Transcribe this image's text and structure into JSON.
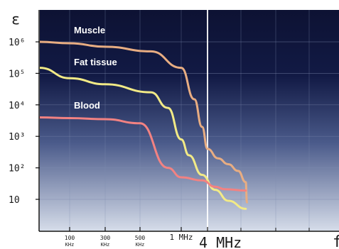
{
  "chart_data": {
    "type": "line",
    "ylabel": "ε",
    "xlabel": "f",
    "y_scale": "log",
    "x_scale": "log",
    "ylim": [
      3,
      2000000
    ],
    "y_ticks": [
      {
        "value": 10,
        "label": "10"
      },
      {
        "value": 100,
        "label": "10²"
      },
      {
        "value": 1000,
        "label": "10³"
      },
      {
        "value": 10000,
        "label": "10⁴"
      },
      {
        "value": 100000,
        "label": "10⁵"
      },
      {
        "value": 1000000,
        "label": "10⁶"
      }
    ],
    "x_ticks": [
      {
        "value": 100000,
        "label_top": "100",
        "label_bottom": "KHz"
      },
      {
        "value": 300000,
        "label_top": "300",
        "label_bottom": "KHz"
      },
      {
        "value": 500000,
        "label_top": "500",
        "label_bottom": "KHz"
      },
      {
        "value": 1000000,
        "label_top": "1 MHz",
        "label_bottom": ""
      },
      {
        "value": 4000000,
        "label_top": "4 MHz",
        "label_bottom": ""
      }
    ],
    "highlight_x": 4000000,
    "series": [
      {
        "name": "Muscle",
        "color": "#e8ad82",
        "points": [
          [
            10000,
            1000000
          ],
          [
            100000,
            900000
          ],
          [
            300000,
            700000
          ],
          [
            600000,
            500000
          ],
          [
            1000000,
            150000
          ],
          [
            2000000,
            15000
          ],
          [
            3000000,
            2000
          ],
          [
            4000000,
            400
          ],
          [
            7000000,
            200
          ],
          [
            12000000,
            130
          ],
          [
            20000000,
            80
          ],
          [
            30000000,
            35
          ],
          [
            32000000,
            8
          ]
        ]
      },
      {
        "name": "Fat tissue",
        "color": "#f2ea86",
        "points": [
          [
            10000,
            150000
          ],
          [
            100000,
            70000
          ],
          [
            300000,
            45000
          ],
          [
            600000,
            25000
          ],
          [
            800000,
            8000
          ],
          [
            1000000,
            800
          ],
          [
            1500000,
            250
          ],
          [
            3000000,
            60
          ],
          [
            6000000,
            20
          ],
          [
            12000000,
            9
          ],
          [
            30000000,
            5
          ]
        ]
      },
      {
        "name": "Blood",
        "color": "#f28282",
        "points": [
          [
            10000,
            4000
          ],
          [
            100000,
            3800
          ],
          [
            300000,
            3500
          ],
          [
            500000,
            2600
          ],
          [
            800000,
            100
          ],
          [
            1000000,
            50
          ],
          [
            3000000,
            40
          ],
          [
            6000000,
            25
          ],
          [
            10000000,
            21
          ],
          [
            30000000,
            19
          ]
        ]
      }
    ]
  }
}
